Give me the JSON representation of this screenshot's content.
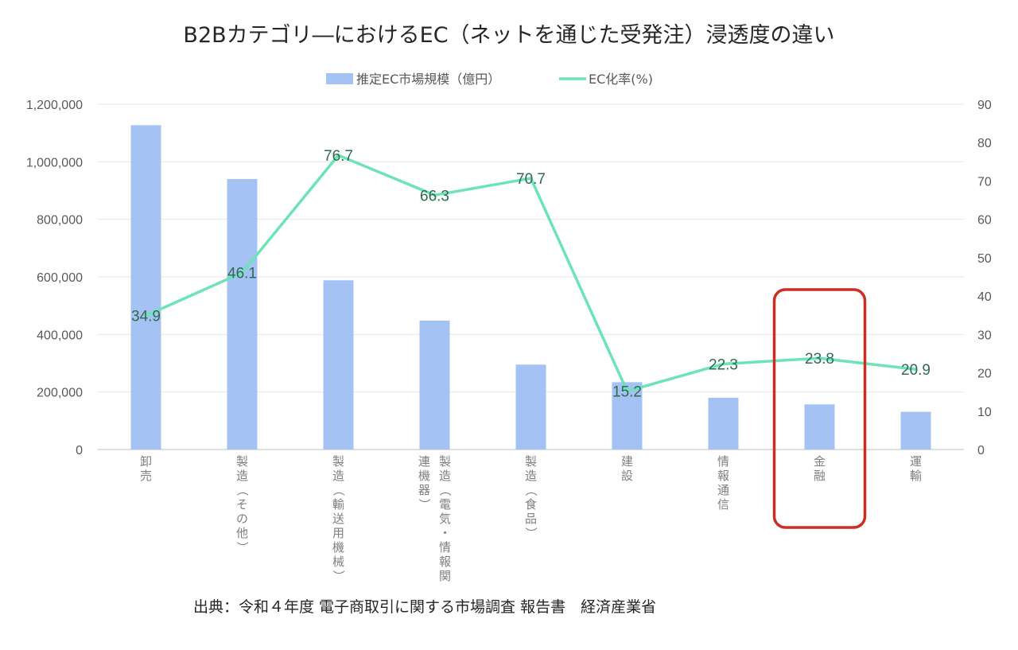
{
  "chart_data": {
    "type": "bar+line",
    "title": "B2Bカテゴリ―におけるEC（ネットを通じた受発注）浸透度の違い",
    "categories": [
      "卸売",
      "製造（その他）",
      "製造（輸送用機械）",
      "製造（電気・情報関連機器）",
      "製造（食品）",
      "建設",
      "情報通信",
      "金融",
      "運輸"
    ],
    "category_lines": [
      [
        "卸売"
      ],
      [
        "製造（その他）"
      ],
      [
        "製造（輸送用機械）"
      ],
      [
        "製造（電気・情報関",
        "連機器）"
      ],
      [
        "製造（食品）"
      ],
      [
        "建設"
      ],
      [
        "情報通信"
      ],
      [
        "金融"
      ],
      [
        "運輸"
      ]
    ],
    "series": [
      {
        "name": "推定EC市場規模（億円）",
        "type": "bar",
        "axis": "left",
        "color": "#a4c2f4",
        "values": [
          1127000,
          940000,
          588000,
          448000,
          295000,
          234000,
          180000,
          157000,
          131000
        ]
      },
      {
        "name": "EC化率(%)",
        "type": "line",
        "axis": "right",
        "color": "#6ee3b8",
        "values": [
          34.9,
          46.1,
          76.7,
          66.3,
          70.7,
          15.2,
          22.3,
          23.8,
          20.9
        ],
        "labels": [
          "34.9",
          "46.1",
          "76.7",
          "66.3",
          "70.7",
          "15.2",
          "22.3",
          "23.8",
          "20.9"
        ]
      }
    ],
    "y_left": {
      "ylim": [
        0,
        1200000
      ],
      "ticks": [
        "0",
        "200,000",
        "400,000",
        "600,000",
        "800,000",
        "1,000,000",
        "1,200,000"
      ]
    },
    "y_right": {
      "ylim": [
        0,
        90
      ],
      "ticks": [
        "0",
        "10",
        "20",
        "30",
        "40",
        "50",
        "60",
        "70",
        "80",
        "90"
      ]
    },
    "grid": true,
    "legend_position": "top",
    "highlight_category": "金融",
    "highlight_color": "#cc2e22"
  },
  "source": "出典：令和４年度 電子商取引に関する市場調査 報告書　経済産業省"
}
